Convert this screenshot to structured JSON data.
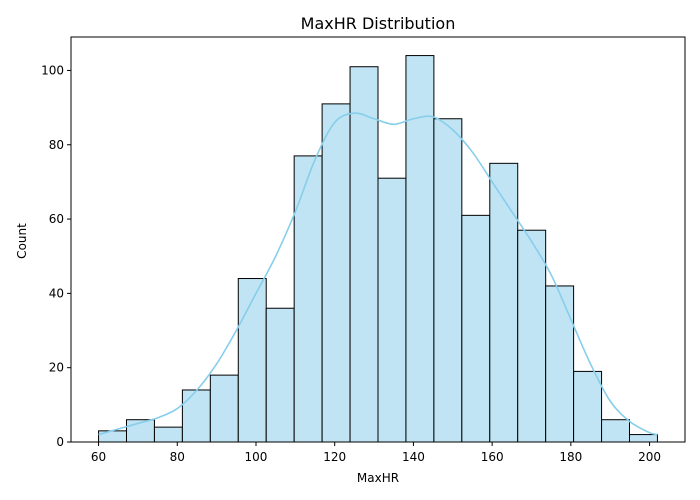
{
  "chart_data": {
    "type": "histogram",
    "title": "MaxHR Distribution",
    "xlabel": "MaxHR",
    "ylabel": "Count",
    "xlim": [
      53.0,
      209.0
    ],
    "ylim": [
      0,
      109
    ],
    "xticks": [
      60,
      80,
      100,
      120,
      140,
      160,
      180,
      200
    ],
    "yticks": [
      0,
      20,
      40,
      60,
      80,
      100
    ],
    "bins": [
      {
        "start": 60.0,
        "end": 67.1,
        "count": 3
      },
      {
        "start": 67.1,
        "end": 74.2,
        "count": 6
      },
      {
        "start": 74.2,
        "end": 81.3,
        "count": 4
      },
      {
        "start": 81.3,
        "end": 88.4,
        "count": 14
      },
      {
        "start": 88.4,
        "end": 95.5,
        "count": 18
      },
      {
        "start": 95.5,
        "end": 102.6,
        "count": 44
      },
      {
        "start": 102.6,
        "end": 109.7,
        "count": 36
      },
      {
        "start": 109.7,
        "end": 116.8,
        "count": 77
      },
      {
        "start": 116.8,
        "end": 123.9,
        "count": 91
      },
      {
        "start": 123.9,
        "end": 131.0,
        "count": 101
      },
      {
        "start": 131.0,
        "end": 138.1,
        "count": 71
      },
      {
        "start": 138.1,
        "end": 145.2,
        "count": 104
      },
      {
        "start": 145.2,
        "end": 152.3,
        "count": 87
      },
      {
        "start": 152.3,
        "end": 159.4,
        "count": 61
      },
      {
        "start": 159.4,
        "end": 166.5,
        "count": 75
      },
      {
        "start": 166.5,
        "end": 173.6,
        "count": 57
      },
      {
        "start": 173.6,
        "end": 180.7,
        "count": 42
      },
      {
        "start": 180.7,
        "end": 187.8,
        "count": 19
      },
      {
        "start": 187.8,
        "end": 194.9,
        "count": 6
      },
      {
        "start": 194.9,
        "end": 202.0,
        "count": 2
      }
    ],
    "kde": {
      "x": [
        60,
        65,
        70,
        75,
        80,
        85,
        90,
        95,
        100,
        105,
        110,
        115,
        120,
        125,
        130,
        135,
        140,
        145,
        150,
        155,
        160,
        165,
        170,
        175,
        180,
        185,
        190,
        195,
        200,
        202
      ],
      "y": [
        2,
        3.5,
        5,
        6.5,
        9,
        14,
        21,
        30,
        40,
        50,
        62,
        76,
        86,
        88.5,
        87,
        85.5,
        87,
        87.5,
        84,
        78,
        70,
        62,
        54,
        45,
        33,
        21,
        11,
        5.5,
        2.5,
        2
      ]
    },
    "bar_fill": "#c0e4f3",
    "bar_edge": "#000000",
    "kde_color": "#87ceeb",
    "grid": false,
    "legend": "none"
  }
}
